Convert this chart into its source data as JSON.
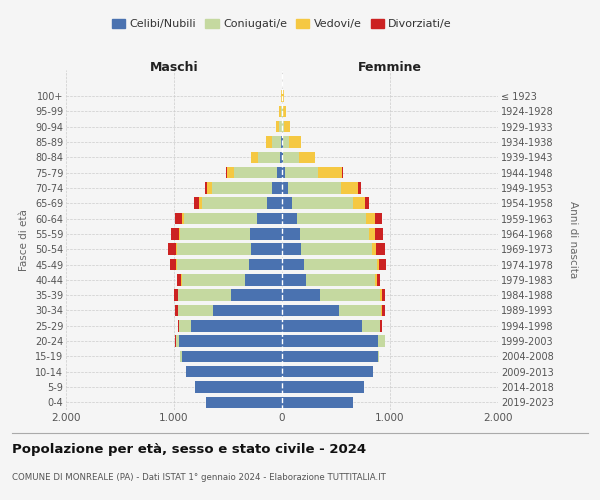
{
  "age_groups": [
    "0-4",
    "5-9",
    "10-14",
    "15-19",
    "20-24",
    "25-29",
    "30-34",
    "35-39",
    "40-44",
    "45-49",
    "50-54",
    "55-59",
    "60-64",
    "65-69",
    "70-74",
    "75-79",
    "80-84",
    "85-89",
    "90-94",
    "95-99",
    "100+"
  ],
  "birth_years": [
    "2019-2023",
    "2014-2018",
    "2009-2013",
    "2004-2008",
    "1999-2003",
    "1994-1998",
    "1989-1993",
    "1984-1988",
    "1979-1983",
    "1974-1978",
    "1969-1973",
    "1964-1968",
    "1959-1963",
    "1954-1958",
    "1949-1953",
    "1944-1948",
    "1939-1943",
    "1934-1938",
    "1929-1933",
    "1924-1928",
    "≤ 1923"
  ],
  "colors": {
    "celibi": "#4a72b0",
    "coniugati": "#c5d9a0",
    "vedovi": "#f5c842",
    "divorziati": "#cc2222"
  },
  "maschi": {
    "celibi": [
      700,
      810,
      890,
      930,
      950,
      840,
      640,
      470,
      340,
      310,
      290,
      295,
      235,
      135,
      90,
      45,
      18,
      8,
      4,
      2,
      1
    ],
    "coniugati": [
      0,
      0,
      0,
      10,
      35,
      110,
      320,
      490,
      590,
      660,
      680,
      650,
      670,
      610,
      560,
      400,
      200,
      85,
      28,
      10,
      2
    ],
    "vedovi": [
      0,
      0,
      0,
      0,
      0,
      0,
      5,
      5,
      8,
      8,
      12,
      12,
      18,
      22,
      45,
      65,
      65,
      52,
      22,
      12,
      3
    ],
    "divorziati": [
      0,
      0,
      0,
      0,
      5,
      12,
      22,
      35,
      35,
      58,
      75,
      72,
      68,
      45,
      22,
      12,
      5,
      2,
      1,
      0,
      0
    ]
  },
  "femmine": {
    "celibi": [
      660,
      760,
      840,
      890,
      890,
      740,
      530,
      350,
      225,
      200,
      175,
      165,
      140,
      95,
      52,
      25,
      10,
      5,
      2,
      1,
      1
    ],
    "coniugati": [
      0,
      0,
      0,
      12,
      60,
      170,
      390,
      560,
      640,
      680,
      660,
      640,
      640,
      560,
      490,
      310,
      150,
      62,
      20,
      5,
      2
    ],
    "vedovi": [
      0,
      0,
      0,
      0,
      0,
      0,
      5,
      12,
      12,
      18,
      35,
      55,
      78,
      115,
      165,
      220,
      145,
      105,
      55,
      28,
      12
    ],
    "divorziati": [
      0,
      0,
      0,
      0,
      5,
      12,
      28,
      35,
      35,
      62,
      80,
      78,
      68,
      38,
      22,
      12,
      5,
      3,
      1,
      0,
      0
    ]
  },
  "xlim": 2000,
  "xticks": [
    -2000,
    -1000,
    0,
    1000,
    2000
  ],
  "xticklabels": [
    "2.000",
    "1.000",
    "0",
    "1.000",
    "2.000"
  ],
  "title": "Popolazione per età, sesso e stato civile - 2024",
  "subtitle": "COMUNE DI MONREALE (PA) - Dati ISTAT 1° gennaio 2024 - Elaborazione TUTTITALIA.IT",
  "ylabel_left": "Fasce di età",
  "ylabel_right": "Anni di nascita",
  "header_left": "Maschi",
  "header_right": "Femmine",
  "legend_labels": [
    "Celibi/Nubili",
    "Coniugati/e",
    "Vedovi/e",
    "Divorziati/e"
  ],
  "bg_color": "#f5f5f5",
  "grid_color": "#cccccc"
}
